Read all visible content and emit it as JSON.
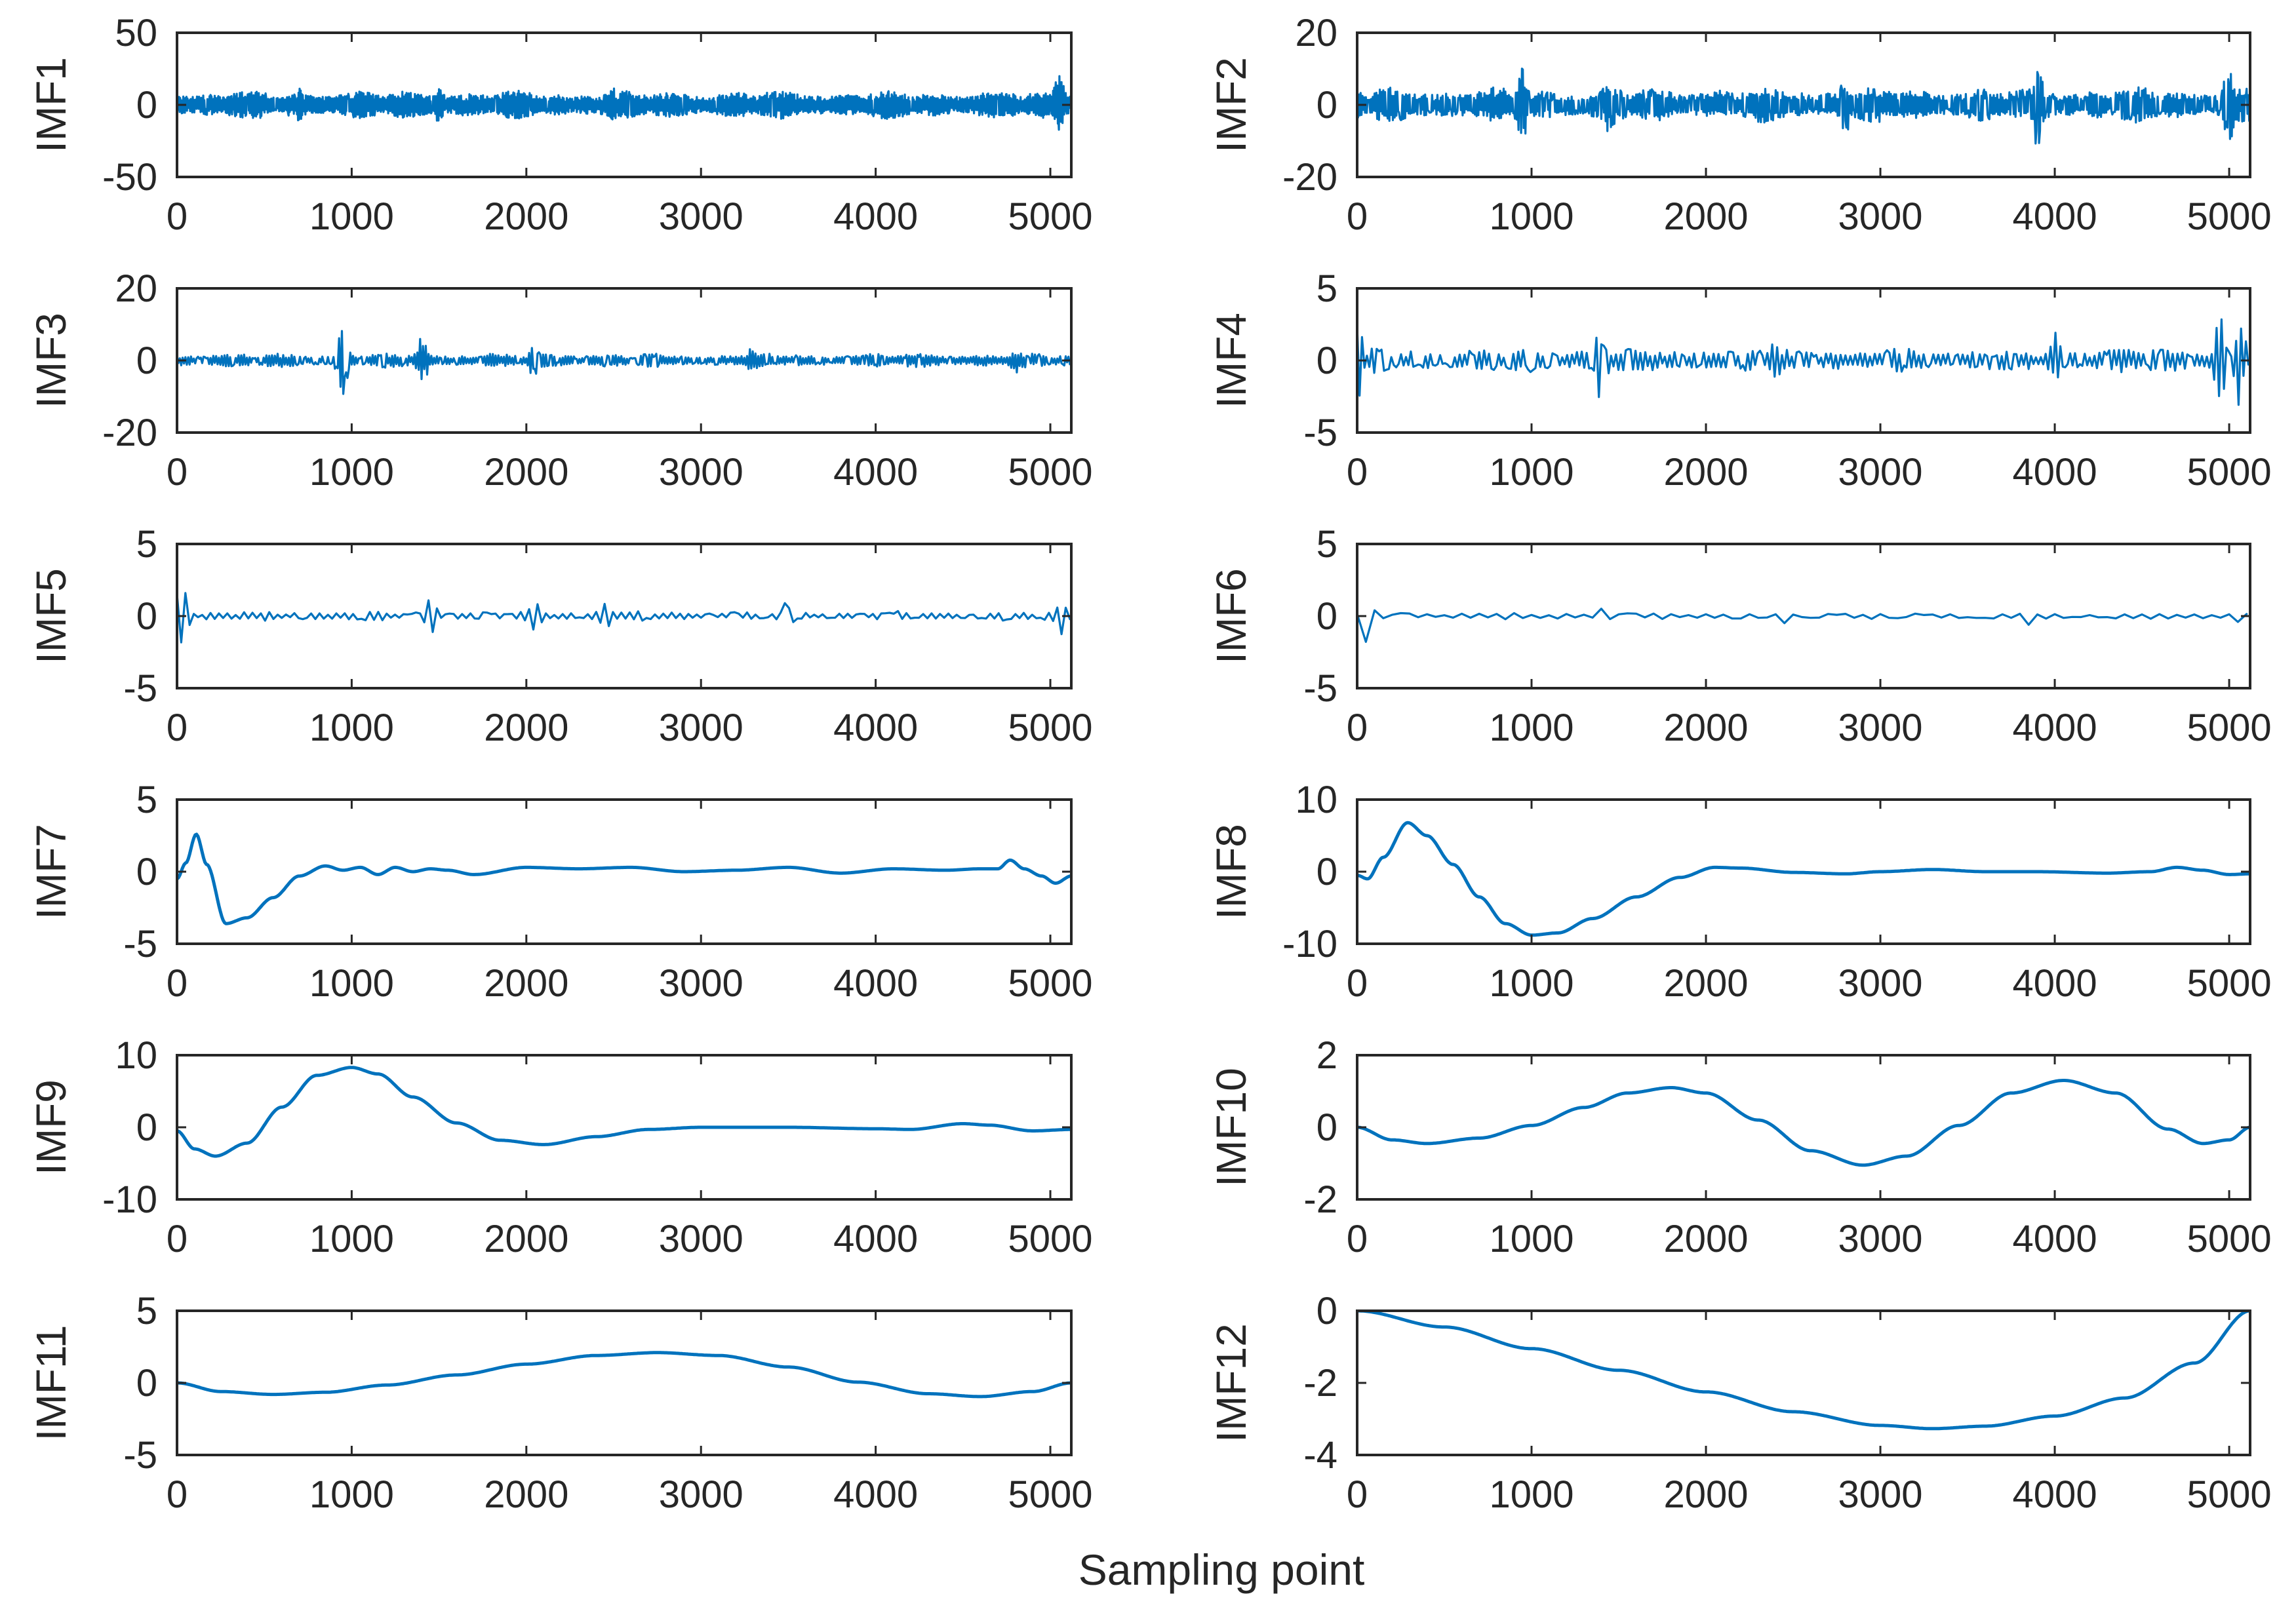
{
  "chart_data": {
    "type": "line",
    "layout": "6x2 grid of subplots",
    "xlabel": "Sampling point",
    "xlim": [
      0,
      5120
    ],
    "xticks": [
      "0",
      "1000",
      "2000",
      "3000",
      "4000",
      "5000"
    ],
    "line_color": "#0072bd",
    "axis_color": "#262626",
    "panels": [
      {
        "ylabel": "IMF1",
        "ylim": [
          -50,
          50
        ],
        "yticks": [
          "50",
          "0",
          "-50"
        ],
        "ytick_values": [
          50,
          0,
          -50
        ],
        "kind": "noise",
        "noise_amplitude": 10,
        "noise_period": 3,
        "bursts": [
          [
            300,
            8
          ],
          [
            700,
            12
          ],
          [
            1500,
            13
          ],
          [
            2500,
            12
          ],
          [
            4600,
            10
          ],
          [
            5050,
            22
          ]
        ]
      },
      {
        "ylabel": "IMF2",
        "ylim": [
          -20,
          20
        ],
        "yticks": [
          "20",
          "0",
          "-20"
        ],
        "ytick_values": [
          20,
          0,
          -20
        ],
        "kind": "noise",
        "noise_amplitude": 5,
        "noise_period": 5,
        "bursts": [
          [
            950,
            11
          ],
          [
            1450,
            9
          ],
          [
            2800,
            9
          ],
          [
            3900,
            13
          ],
          [
            5000,
            12
          ]
        ]
      },
      {
        "ylabel": "IMF3",
        "ylim": [
          -20,
          20
        ],
        "yticks": [
          "20",
          "0",
          "-20"
        ],
        "ytick_values": [
          20,
          0,
          -20
        ],
        "kind": "noise",
        "noise_amplitude": 2,
        "noise_period": 8,
        "bursts": [
          [
            950,
            10
          ],
          [
            1400,
            8
          ],
          [
            2050,
            6
          ],
          [
            3300,
            5
          ],
          [
            4800,
            4
          ]
        ]
      },
      {
        "ylabel": "IMF4",
        "ylim": [
          -5,
          5
        ],
        "yticks": [
          "5",
          "0",
          "-5"
        ],
        "ytick_values": [
          5,
          0,
          -5
        ],
        "kind": "noise",
        "noise_amplitude": 0.9,
        "noise_period": 14,
        "bursts": [
          [
            0,
            3.8
          ],
          [
            1400,
            3.2
          ],
          [
            2400,
            2.2
          ],
          [
            4000,
            2.2
          ],
          [
            4950,
            4
          ],
          [
            5060,
            3.5
          ]
        ]
      },
      {
        "ylabel": "IMF5",
        "ylim": [
          -5,
          5
        ],
        "yticks": [
          "5",
          "0",
          "-5"
        ],
        "ytick_values": [
          5,
          0,
          -5
        ],
        "kind": "noise",
        "noise_amplitude": 0.35,
        "noise_period": 24,
        "bursts": [
          [
            30,
            3
          ],
          [
            1450,
            1.6
          ],
          [
            2050,
            1.4
          ],
          [
            2450,
            1.5
          ],
          [
            3500,
            1.3
          ],
          [
            5060,
            1.4
          ]
        ]
      },
      {
        "ylabel": "IMF6",
        "ylim": [
          -5,
          5
        ],
        "yticks": [
          "5",
          "0",
          "-5"
        ],
        "ytick_values": [
          5,
          0,
          -5
        ],
        "kind": "noise",
        "noise_amplitude": 0.25,
        "noise_period": 50,
        "bursts": [
          [
            60,
            2.3
          ],
          [
            1400,
            0.7
          ],
          [
            2450,
            0.8
          ],
          [
            3850,
            0.9
          ],
          [
            5050,
            0.6
          ]
        ]
      },
      {
        "ylabel": "IMF7",
        "ylim": [
          -5,
          5
        ],
        "yticks": [
          "5",
          "0",
          "-5"
        ],
        "ytick_values": [
          5,
          0,
          -5
        ],
        "kind": "smooth",
        "knots": [
          [
            0,
            -0.5
          ],
          [
            50,
            0.6
          ],
          [
            110,
            2.6
          ],
          [
            170,
            0.5
          ],
          [
            280,
            -3.6
          ],
          [
            400,
            -3.2
          ],
          [
            550,
            -1.8
          ],
          [
            700,
            -0.3
          ],
          [
            850,
            0.4
          ],
          [
            950,
            0.1
          ],
          [
            1050,
            0.3
          ],
          [
            1150,
            -0.2
          ],
          [
            1250,
            0.3
          ],
          [
            1350,
            0
          ],
          [
            1450,
            0.2
          ],
          [
            1550,
            0.1
          ],
          [
            1700,
            -0.2
          ],
          [
            2000,
            0.3
          ],
          [
            2300,
            0.2
          ],
          [
            2600,
            0.3
          ],
          [
            2900,
            0
          ],
          [
            3200,
            0.1
          ],
          [
            3500,
            0.3
          ],
          [
            3800,
            -0.1
          ],
          [
            4100,
            0.2
          ],
          [
            4400,
            0.1
          ],
          [
            4600,
            0.2
          ],
          [
            4700,
            0.2
          ],
          [
            4770,
            0.8
          ],
          [
            4850,
            0.2
          ],
          [
            4950,
            -0.3
          ],
          [
            5030,
            -0.8
          ],
          [
            5120,
            -0.3
          ]
        ]
      },
      {
        "ylabel": "IMF8",
        "ylim": [
          -10,
          10
        ],
        "yticks": [
          "10",
          "0",
          "-10"
        ],
        "ytick_values": [
          10,
          0,
          -10
        ],
        "kind": "smooth",
        "knots": [
          [
            0,
            -0.5
          ],
          [
            60,
            -1
          ],
          [
            150,
            2
          ],
          [
            290,
            6.8
          ],
          [
            400,
            5
          ],
          [
            550,
            1
          ],
          [
            700,
            -3.5
          ],
          [
            850,
            -7.2
          ],
          [
            1000,
            -8.8
          ],
          [
            1150,
            -8.5
          ],
          [
            1350,
            -6.5
          ],
          [
            1600,
            -3.5
          ],
          [
            1850,
            -0.8
          ],
          [
            2050,
            0.6
          ],
          [
            2200,
            0.5
          ],
          [
            2500,
            -0.1
          ],
          [
            2800,
            -0.3
          ],
          [
            3000,
            0
          ],
          [
            3300,
            0.3
          ],
          [
            3600,
            0
          ],
          [
            3900,
            0
          ],
          [
            4300,
            -0.2
          ],
          [
            4550,
            0
          ],
          [
            4700,
            0.6
          ],
          [
            4850,
            0.2
          ],
          [
            5000,
            -0.4
          ],
          [
            5120,
            -0.3
          ]
        ]
      },
      {
        "ylabel": "IMF9",
        "ylim": [
          -10,
          10
        ],
        "yticks": [
          "10",
          "0",
          "-10"
        ],
        "ytick_values": [
          10,
          0,
          -10
        ],
        "kind": "smooth",
        "knots": [
          [
            0,
            -0.5
          ],
          [
            100,
            -3
          ],
          [
            220,
            -4
          ],
          [
            400,
            -2.2
          ],
          [
            600,
            2.8
          ],
          [
            800,
            7.2
          ],
          [
            1000,
            8.3
          ],
          [
            1150,
            7.4
          ],
          [
            1350,
            4.2
          ],
          [
            1600,
            0.6
          ],
          [
            1850,
            -1.8
          ],
          [
            2100,
            -2.4
          ],
          [
            2400,
            -1.3
          ],
          [
            2700,
            -0.3
          ],
          [
            3000,
            0
          ],
          [
            3500,
            0
          ],
          [
            4000,
            -0.2
          ],
          [
            4200,
            -0.3
          ],
          [
            4500,
            0.5
          ],
          [
            4650,
            0.3
          ],
          [
            4900,
            -0.5
          ],
          [
            5120,
            -0.3
          ]
        ]
      },
      {
        "ylabel": "IMF10",
        "ylim": [
          -2,
          2
        ],
        "yticks": [
          "2",
          "0",
          "-2"
        ],
        "ytick_values": [
          2,
          0,
          -2
        ],
        "kind": "smooth",
        "knots": [
          [
            0,
            0
          ],
          [
            200,
            -0.35
          ],
          [
            400,
            -0.45
          ],
          [
            700,
            -0.3
          ],
          [
            1000,
            0.05
          ],
          [
            1300,
            0.55
          ],
          [
            1550,
            0.95
          ],
          [
            1800,
            1.1
          ],
          [
            2000,
            0.95
          ],
          [
            2300,
            0.2
          ],
          [
            2600,
            -0.65
          ],
          [
            2900,
            -1.05
          ],
          [
            3150,
            -0.8
          ],
          [
            3450,
            0.05
          ],
          [
            3750,
            0.95
          ],
          [
            4050,
            1.3
          ],
          [
            4350,
            0.95
          ],
          [
            4650,
            -0.05
          ],
          [
            4850,
            -0.45
          ],
          [
            5000,
            -0.35
          ],
          [
            5120,
            0
          ]
        ]
      },
      {
        "ylabel": "IMF11",
        "ylim": [
          -5,
          5
        ],
        "yticks": [
          "5",
          "0",
          "-5"
        ],
        "ytick_values": [
          5,
          0,
          -5
        ],
        "kind": "smooth",
        "knots": [
          [
            0,
            0
          ],
          [
            250,
            -0.6
          ],
          [
            550,
            -0.8
          ],
          [
            850,
            -0.65
          ],
          [
            1200,
            -0.15
          ],
          [
            1600,
            0.55
          ],
          [
            2000,
            1.3
          ],
          [
            2400,
            1.9
          ],
          [
            2750,
            2.1
          ],
          [
            3100,
            1.9
          ],
          [
            3500,
            1.1
          ],
          [
            3900,
            0.05
          ],
          [
            4300,
            -0.75
          ],
          [
            4600,
            -0.95
          ],
          [
            4900,
            -0.6
          ],
          [
            5120,
            0
          ]
        ]
      },
      {
        "ylabel": "IMF12",
        "ylim": [
          -4,
          0
        ],
        "yticks": [
          "0",
          "-2",
          "-4"
        ],
        "ytick_values": [
          0,
          -2,
          -4
        ],
        "kind": "smooth",
        "knots": [
          [
            0,
            0
          ],
          [
            500,
            -0.45
          ],
          [
            1000,
            -1.05
          ],
          [
            1500,
            -1.65
          ],
          [
            2000,
            -2.25
          ],
          [
            2500,
            -2.8
          ],
          [
            3000,
            -3.18
          ],
          [
            3300,
            -3.27
          ],
          [
            3600,
            -3.2
          ],
          [
            4000,
            -2.92
          ],
          [
            4400,
            -2.42
          ],
          [
            4800,
            -1.45
          ],
          [
            5120,
            0
          ]
        ]
      }
    ]
  }
}
